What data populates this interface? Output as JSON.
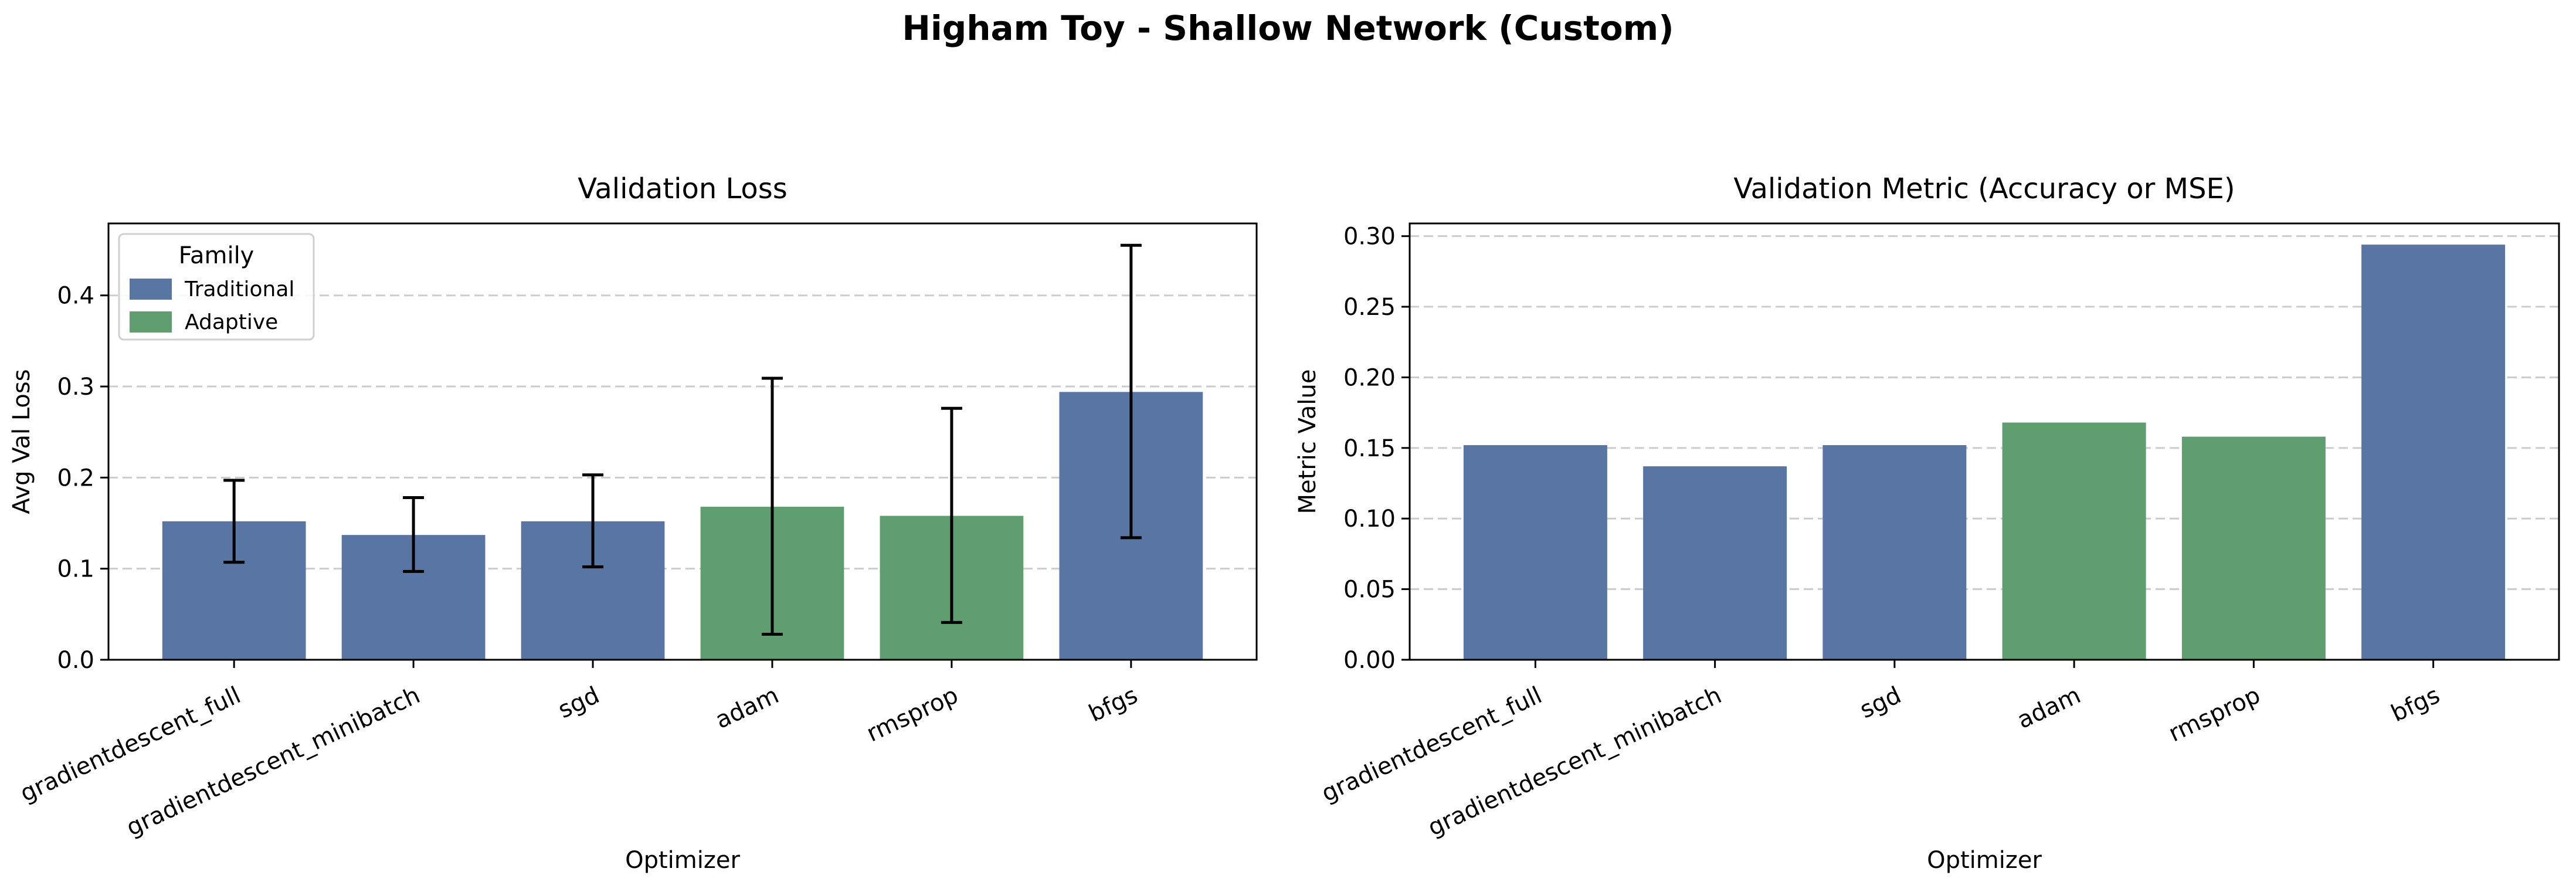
{
  "figure": {
    "title": "Higham Toy - Shallow Network (Custom)"
  },
  "colors": {
    "traditional": "#5975a4",
    "adaptive": "#5f9e6e",
    "grid": "#cccccc",
    "axis": "#000000",
    "errorbar": "#000000"
  },
  "chart_data": [
    {
      "type": "bar",
      "title": "Validation Loss",
      "xlabel": "Optimizer",
      "ylabel": "Avg Val Loss",
      "categories": [
        "gradientdescent_full",
        "gradientdescent_minibatch",
        "sgd",
        "adam",
        "rmsprop",
        "bfgs"
      ],
      "families": [
        "Traditional",
        "Traditional",
        "Traditional",
        "Adaptive",
        "Adaptive",
        "Traditional"
      ],
      "values": [
        0.152,
        0.137,
        0.152,
        0.168,
        0.158,
        0.294
      ],
      "error_low": [
        0.107,
        0.097,
        0.102,
        0.028,
        0.041,
        0.134
      ],
      "error_high": [
        0.197,
        0.178,
        0.203,
        0.309,
        0.276,
        0.455
      ],
      "ylim": [
        0,
        0.479
      ],
      "yticks": [
        0.0,
        0.1,
        0.2,
        0.3,
        0.4
      ],
      "ytick_labels": [
        "0.0",
        "0.1",
        "0.2",
        "0.3",
        "0.4"
      ],
      "grid": "y-dashed",
      "legend": {
        "title": "Family",
        "placement": "upper-left",
        "entries": [
          {
            "label": "Traditional",
            "color": "#5975a4"
          },
          {
            "label": "Adaptive",
            "color": "#5f9e6e"
          }
        ]
      }
    },
    {
      "type": "bar",
      "title": "Validation Metric (Accuracy or MSE)",
      "xlabel": "Optimizer",
      "ylabel": "Metric Value",
      "categories": [
        "gradientdescent_full",
        "gradientdescent_minibatch",
        "sgd",
        "adam",
        "rmsprop",
        "bfgs"
      ],
      "families": [
        "Traditional",
        "Traditional",
        "Traditional",
        "Adaptive",
        "Adaptive",
        "Traditional"
      ],
      "values": [
        0.152,
        0.137,
        0.152,
        0.168,
        0.158,
        0.294
      ],
      "ylim": [
        0,
        0.309
      ],
      "yticks": [
        0.0,
        0.05,
        0.1,
        0.15,
        0.2,
        0.25,
        0.3
      ],
      "ytick_labels": [
        "0.00",
        "0.05",
        "0.10",
        "0.15",
        "0.20",
        "0.25",
        "0.30"
      ],
      "grid": "y-dashed"
    }
  ]
}
